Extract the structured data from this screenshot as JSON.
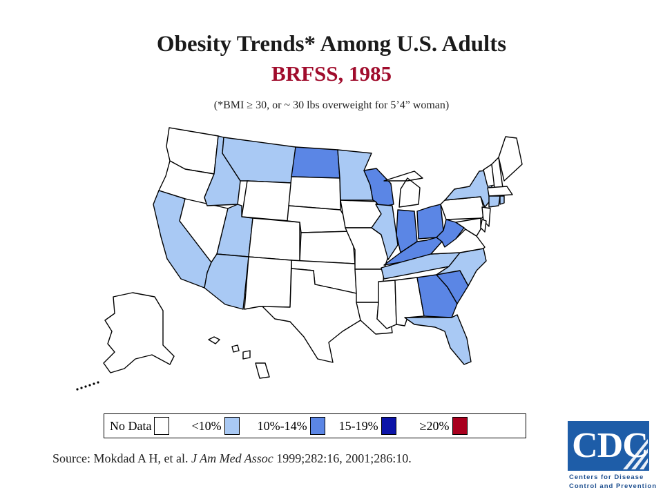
{
  "title": "Obesity Trends* Among U.S. Adults",
  "subtitle": "BRFSS, 1985",
  "footnote": "(*BMI ≥ 30, or ~ 30 lbs overweight for 5’4” woman)",
  "colors": {
    "no_data": "#ffffff",
    "lt10": "#a9c9f4",
    "p10_14": "#5b86e5",
    "p15_19": "#0c14a8",
    "ge20": "#a8001e"
  },
  "legend": [
    {
      "label": "No Data",
      "category": "no_data"
    },
    {
      "label": "<10%",
      "category": "lt10"
    },
    {
      "label": "10%-14%",
      "category": "p10_14"
    },
    {
      "label": "15-19%",
      "category": "p15_19"
    },
    {
      "label": "≥20%",
      "category": "ge20"
    }
  ],
  "states": {
    "WA": "no_data",
    "OR": "no_data",
    "CA": "lt10",
    "NV": "no_data",
    "ID": "lt10",
    "MT": "lt10",
    "WY": "no_data",
    "UT": "lt10",
    "AZ": "lt10",
    "CO": "no_data",
    "NM": "no_data",
    "ND": "p10_14",
    "SD": "no_data",
    "NE": "no_data",
    "KS": "no_data",
    "OK": "no_data",
    "TX": "no_data",
    "MN": "lt10",
    "IA": "no_data",
    "MO": "no_data",
    "AR": "no_data",
    "LA": "no_data",
    "WI": "p10_14",
    "IL": "lt10",
    "MI": "no_data",
    "IN": "p10_14",
    "OH": "p10_14",
    "KY": "p10_14",
    "TN": "lt10",
    "MS": "no_data",
    "AL": "no_data",
    "GA": "p10_14",
    "FL": "lt10",
    "SC": "p10_14",
    "NC": "lt10",
    "VA": "no_data",
    "WV": "p10_14",
    "PA": "no_data",
    "NY": "lt10",
    "VT": "no_data",
    "NH": "no_data",
    "ME": "no_data",
    "MA": "no_data",
    "CT": "lt10",
    "RI": "lt10",
    "NJ": "no_data",
    "DE": "no_data",
    "MD": "no_data",
    "AK": "no_data",
    "HI": "no_data"
  },
  "source": {
    "prefix": "Source: Mokdad A H, et al.",
    "journal": "J Am Med Assoc",
    "suffix": "1999;282:16,  2001;286:10."
  },
  "logo": {
    "letters": "CDC",
    "line1": "Centers for Disease",
    "line2": "Control and Prevention"
  }
}
